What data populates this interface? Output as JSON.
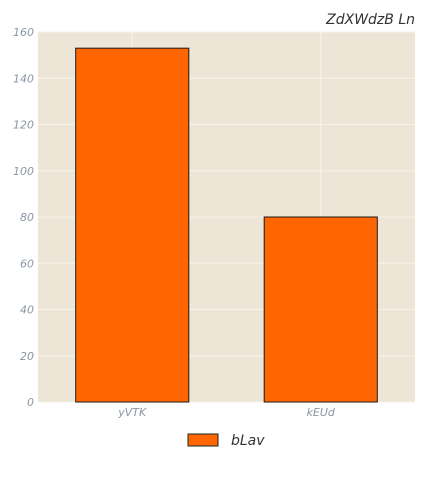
{
  "chart_data": {
    "type": "bar",
    "title": "ZdXWdzB Ln",
    "categories": [
      "yVTK",
      "kEUd"
    ],
    "series": [
      {
        "name": "bLav",
        "values": [
          153,
          80
        ]
      }
    ],
    "ylim": [
      0,
      160
    ],
    "yticks": [
      0,
      20,
      40,
      60,
      80,
      100,
      120,
      140,
      160
    ],
    "xlabel": "",
    "ylabel": "",
    "grid": true,
    "legend_position": "bottom-center"
  },
  "colors": {
    "bar": "#ff6600",
    "plot_background": "#ede6d6",
    "grid": "#f7f3ea",
    "tick_text": "#8a96a3",
    "title_text": "#333333"
  }
}
